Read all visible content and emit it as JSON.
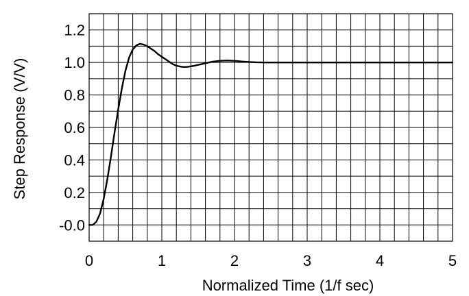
{
  "chart_data": {
    "type": "line",
    "xlabel": "Normalized Time (1/f sec)",
    "ylabel": "Step Response (V/V)",
    "xlim": [
      0,
      5
    ],
    "ylim": [
      -0.1,
      1.3
    ],
    "x_ticks": [
      0,
      1,
      2,
      3,
      4,
      5
    ],
    "x_tick_labels": [
      "0",
      "1",
      "2",
      "3",
      "4",
      "5"
    ],
    "y_ticks": [
      0.0,
      0.2,
      0.4,
      0.6,
      0.8,
      1.0,
      1.2
    ],
    "y_tick_labels": [
      "-0.0",
      "0.2",
      "0.4",
      "0.6",
      "0.8",
      "1.0",
      "1.2"
    ],
    "grid": true,
    "grid_x_step": 0.2,
    "grid_y_step": 0.1,
    "series": [
      {
        "color": "#000000",
        "x": [
          0.0,
          0.05,
          0.1,
          0.15,
          0.2,
          0.25,
          0.3,
          0.35,
          0.4,
          0.45,
          0.5,
          0.55,
          0.6,
          0.65,
          0.7,
          0.75,
          0.8,
          0.85,
          0.9,
          0.95,
          1.0,
          1.05,
          1.1,
          1.15,
          1.2,
          1.25,
          1.3,
          1.35,
          1.4,
          1.45,
          1.5,
          1.6,
          1.7,
          1.8,
          1.9,
          2.0,
          2.1,
          2.2,
          2.3,
          2.4,
          2.5,
          2.6,
          2.8,
          3.0,
          3.5,
          4.0,
          4.5,
          5.0
        ],
        "y": [
          0.0,
          0.0,
          0.02,
          0.07,
          0.16,
          0.28,
          0.42,
          0.57,
          0.71,
          0.84,
          0.95,
          1.03,
          1.08,
          1.105,
          1.115,
          1.11,
          1.1,
          1.085,
          1.07,
          1.05,
          1.035,
          1.02,
          1.005,
          0.99,
          0.98,
          0.975,
          0.972,
          0.973,
          0.976,
          0.98,
          0.985,
          0.995,
          1.005,
          1.01,
          1.012,
          1.01,
          1.006,
          1.003,
          1.001,
          1.0,
          1.0,
          1.0,
          1.0,
          1.0,
          1.0,
          1.0,
          1.0,
          1.0
        ]
      }
    ]
  }
}
